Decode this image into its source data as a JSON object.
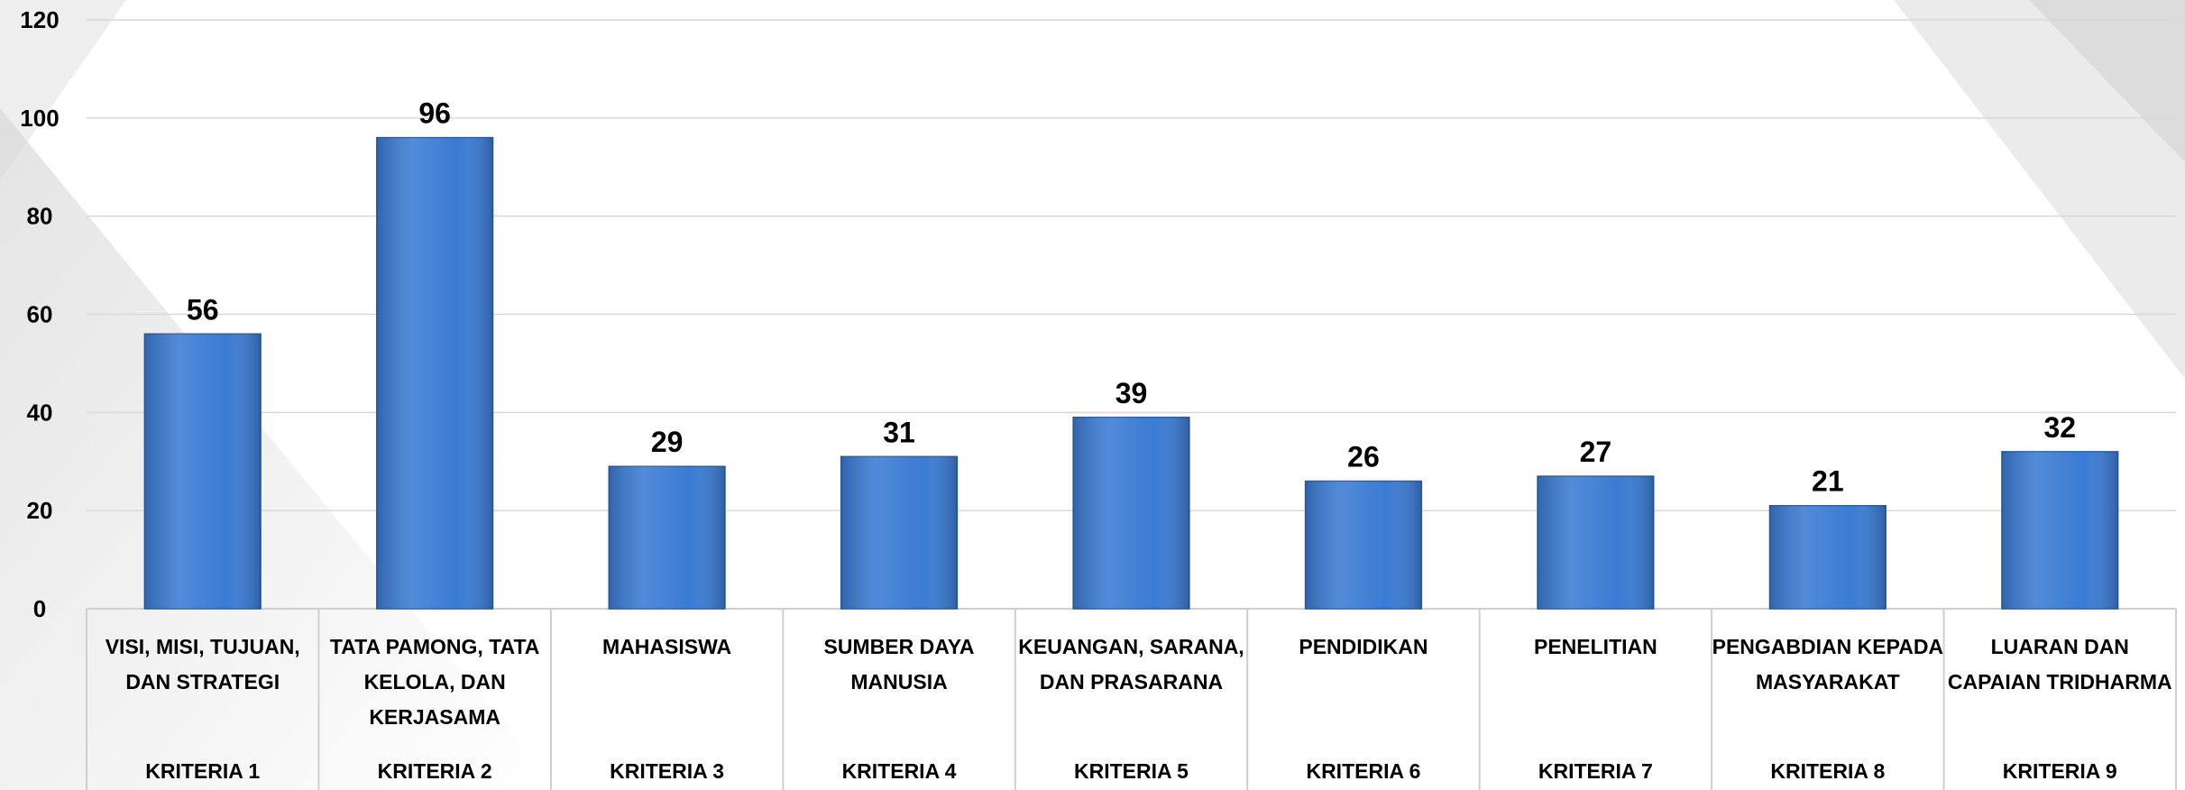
{
  "chart_data": {
    "type": "bar",
    "categories": [
      "KRITERIA 1",
      "KRITERIA 2",
      "KRITERIA 3",
      "KRITERIA 4",
      "KRITERIA 5",
      "KRITERIA 6",
      "KRITERIA 7",
      "KRITERIA 8",
      "KRITERIA 9"
    ],
    "category_descriptions": [
      "VISI, MISI, TUJUAN, DAN STRATEGI",
      "TATA PAMONG, TATA KELOLA, DAN KERJASAMA",
      "MAHASISWA",
      "SUMBER DAYA MANUSIA",
      "KEUANGAN, SARANA, DAN PRASARANA",
      "PENDIDIKAN",
      "PENELITIAN",
      "PENGABDIAN KEPADA MASYARAKAT",
      "LUARAN DAN CAPAIAN TRIDHARMA"
    ],
    "values": [
      56,
      96,
      29,
      31,
      39,
      26,
      27,
      21,
      32
    ],
    "color": "#3b7bd3",
    "ylim": [
      0,
      120
    ],
    "yticks": [
      0,
      20,
      40,
      60,
      80,
      100,
      120
    ],
    "grid": true
  }
}
